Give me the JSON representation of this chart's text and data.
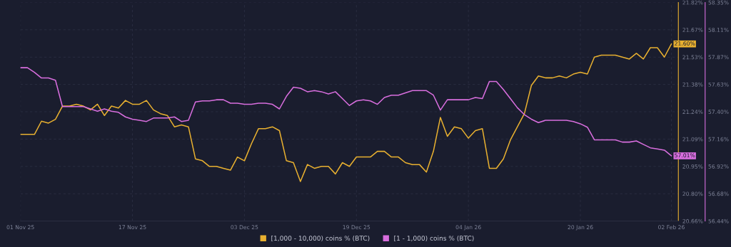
{
  "chart_data": {
    "type": "line",
    "x": [
      "2025-11-01",
      "2025-11-02",
      "2025-11-03",
      "2025-11-04",
      "2025-11-05",
      "2025-11-06",
      "2025-11-07",
      "2025-11-08",
      "2025-11-09",
      "2025-11-10",
      "2025-11-11",
      "2025-11-12",
      "2025-11-13",
      "2025-11-14",
      "2025-11-15",
      "2025-11-16",
      "2025-11-17",
      "2025-11-18",
      "2025-11-19",
      "2025-11-20",
      "2025-11-21",
      "2025-11-22",
      "2025-11-23",
      "2025-11-24",
      "2025-11-25",
      "2025-11-26",
      "2025-11-27",
      "2025-11-28",
      "2025-11-29",
      "2025-11-30",
      "2025-12-01",
      "2025-12-02",
      "2025-12-03",
      "2025-12-04",
      "2025-12-05",
      "2025-12-06",
      "2025-12-07",
      "2025-12-08",
      "2025-12-09",
      "2025-12-10",
      "2025-12-11",
      "2025-12-12",
      "2025-12-13",
      "2025-12-14",
      "2025-12-15",
      "2025-12-16",
      "2025-12-17",
      "2025-12-18",
      "2025-12-19",
      "2025-12-20",
      "2025-12-21",
      "2025-12-22",
      "2025-12-23",
      "2025-12-24",
      "2025-12-25",
      "2025-12-26",
      "2025-12-27",
      "2025-12-28",
      "2025-12-29",
      "2025-12-30",
      "2025-12-31",
      "2026-01-01",
      "2026-01-02",
      "2026-01-03",
      "2026-01-04",
      "2026-01-05",
      "2026-01-06",
      "2026-01-07",
      "2026-01-08",
      "2026-01-09",
      "2026-01-10",
      "2026-01-11",
      "2026-01-12",
      "2026-01-13",
      "2026-01-14",
      "2026-01-15",
      "2026-01-16",
      "2026-01-17",
      "2026-01-18",
      "2026-01-19",
      "2026-01-20",
      "2026-01-21",
      "2026-01-22",
      "2026-01-23",
      "2026-01-24",
      "2026-01-25",
      "2026-01-26",
      "2026-01-27",
      "2026-01-28",
      "2026-01-29",
      "2026-01-30",
      "2026-01-31",
      "2026-02-01",
      "2026-02-02"
    ],
    "series": [
      {
        "name": "[1,000 - 10,000) coins % (BTC)",
        "color": "#e8b030",
        "axis": "y",
        "values": [
          21.12,
          21.12,
          21.12,
          21.19,
          21.18,
          21.2,
          21.27,
          21.27,
          21.28,
          21.27,
          21.25,
          21.28,
          21.22,
          21.27,
          21.26,
          21.3,
          21.28,
          21.28,
          21.3,
          21.25,
          21.23,
          21.22,
          21.16,
          21.17,
          21.16,
          20.99,
          20.98,
          20.95,
          20.95,
          20.94,
          20.93,
          21.0,
          20.98,
          21.07,
          21.15,
          21.15,
          21.16,
          21.14,
          20.98,
          20.97,
          20.87,
          20.96,
          20.94,
          20.95,
          20.95,
          20.91,
          20.97,
          20.95,
          21.0,
          21.0,
          21.0,
          21.03,
          21.03,
          21.0,
          21.0,
          20.97,
          20.96,
          20.96,
          20.92,
          21.03,
          21.21,
          21.11,
          21.16,
          21.15,
          21.1,
          21.14,
          21.15,
          20.94,
          20.94,
          20.99,
          21.09,
          21.16,
          21.23,
          21.38,
          21.43,
          21.42,
          21.42,
          21.43,
          21.42,
          21.44,
          21.45,
          21.44,
          21.53,
          21.54,
          21.54,
          21.54,
          21.53,
          21.52,
          21.55,
          21.52,
          21.58,
          21.58,
          21.53,
          21.6
        ],
        "value_labels": [
          null,
          null,
          null,
          null,
          null,
          null,
          null,
          null,
          null,
          null,
          null,
          null,
          null,
          null,
          null,
          null,
          null,
          null,
          null,
          null,
          null,
          null,
          null,
          null,
          null,
          null,
          null,
          null,
          null,
          null,
          null,
          null,
          null,
          null,
          null,
          null,
          null,
          null,
          null,
          null,
          null,
          null,
          null,
          null,
          null,
          null,
          null,
          null,
          null,
          null,
          null,
          null,
          null,
          null,
          null,
          null,
          null,
          null,
          null,
          null,
          null,
          null,
          null,
          null,
          null,
          null,
          null,
          null,
          null,
          null,
          null,
          null,
          null,
          null,
          null,
          null,
          null,
          null,
          null,
          null,
          null,
          null,
          null,
          null,
          null,
          null,
          null,
          null,
          null,
          null,
          null,
          null,
          null,
          "21.60%"
        ]
      },
      {
        "name": "[1 - 1,000) coins % (BTC)",
        "color": "#d86ede",
        "axis": "y2",
        "values": [
          57.78,
          57.78,
          57.74,
          57.69,
          57.69,
          57.67,
          57.44,
          57.44,
          57.44,
          57.44,
          57.42,
          57.4,
          57.42,
          57.4,
          57.39,
          57.35,
          57.33,
          57.32,
          57.31,
          57.34,
          57.34,
          57.34,
          57.35,
          57.31,
          57.32,
          57.48,
          57.49,
          57.49,
          57.5,
          57.5,
          57.47,
          57.47,
          57.46,
          57.46,
          57.47,
          57.47,
          57.46,
          57.42,
          57.53,
          57.61,
          57.6,
          57.57,
          57.58,
          57.57,
          57.55,
          57.57,
          57.51,
          57.45,
          57.49,
          57.5,
          57.49,
          57.46,
          57.52,
          57.54,
          57.54,
          57.56,
          57.58,
          57.58,
          57.58,
          57.54,
          57.41,
          57.5,
          57.5,
          57.5,
          57.5,
          57.52,
          57.51,
          57.66,
          57.66,
          57.59,
          57.51,
          57.43,
          57.37,
          57.33,
          57.3,
          57.32,
          57.32,
          57.32,
          57.32,
          57.31,
          57.29,
          57.26,
          57.15,
          57.15,
          57.15,
          57.15,
          57.13,
          57.13,
          57.14,
          57.11,
          57.08,
          57.07,
          57.06,
          57.01
        ],
        "value_labels": [
          null,
          null,
          null,
          null,
          null,
          null,
          null,
          null,
          null,
          null,
          null,
          null,
          null,
          null,
          null,
          null,
          null,
          null,
          null,
          null,
          null,
          null,
          null,
          null,
          null,
          null,
          null,
          null,
          null,
          null,
          null,
          null,
          null,
          null,
          null,
          null,
          null,
          null,
          null,
          null,
          null,
          null,
          null,
          null,
          null,
          null,
          null,
          null,
          null,
          null,
          null,
          null,
          null,
          null,
          null,
          null,
          null,
          null,
          null,
          null,
          null,
          null,
          null,
          null,
          null,
          null,
          null,
          null,
          null,
          null,
          null,
          null,
          null,
          null,
          null,
          null,
          null,
          null,
          null,
          null,
          null,
          null,
          null,
          null,
          null,
          null,
          null,
          null,
          null,
          null,
          null,
          null,
          null,
          "57.01%"
        ]
      }
    ],
    "xlim": [
      "2025-11-01",
      "2026-02-03"
    ],
    "xticks": [
      {
        "value": "2025-11-01",
        "label": "01 Nov 25"
      },
      {
        "value": "2025-11-17",
        "label": "17 Nov 25"
      },
      {
        "value": "2025-12-03",
        "label": "03 Dec 25"
      },
      {
        "value": "2025-12-19",
        "label": "19 Dec 25"
      },
      {
        "value": "2026-01-04",
        "label": "04 Jan 26"
      },
      {
        "value": "2026-01-20",
        "label": "20 Jan 26"
      },
      {
        "value": "2026-02-02",
        "label": "02 Feb 26"
      }
    ],
    "ylim": [
      20.66,
      21.82
    ],
    "yticks": [
      {
        "value": 20.66,
        "label": "20.66%"
      },
      {
        "value": 20.805,
        "label": "20.80%"
      },
      {
        "value": 20.95,
        "label": "20.95%"
      },
      {
        "value": 21.095,
        "label": "21.09%"
      },
      {
        "value": 21.24,
        "label": "21.24%"
      },
      {
        "value": 21.385,
        "label": "21.38%"
      },
      {
        "value": 21.53,
        "label": "21.53%"
      },
      {
        "value": 21.675,
        "label": "21.67%"
      },
      {
        "value": 21.82,
        "label": "21.82%"
      }
    ],
    "y2lim": [
      56.44,
      58.35
    ],
    "y2ticks": [
      {
        "value": 56.44,
        "label": "56.44%"
      },
      {
        "value": 56.679,
        "label": "56.68%"
      },
      {
        "value": 56.918,
        "label": "56.92%"
      },
      {
        "value": 57.156,
        "label": "57.16%"
      },
      {
        "value": 57.395,
        "label": "57.40%"
      },
      {
        "value": 57.634,
        "label": "57.63%"
      },
      {
        "value": 57.873,
        "label": "57.87%"
      },
      {
        "value": 58.111,
        "label": "58.11%"
      },
      {
        "value": 58.35,
        "label": "58.35%"
      }
    ],
    "grid": true,
    "line_style": "solid",
    "marker": "none",
    "legend": "bottom"
  }
}
